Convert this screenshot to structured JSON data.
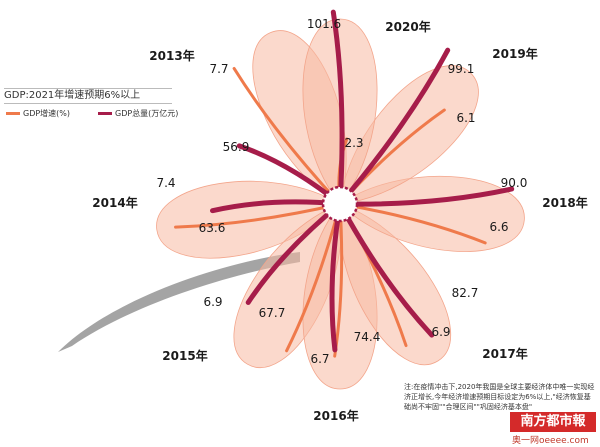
{
  "chart_data": {
    "type": "radial-bar",
    "title": "GDP:2021年增速预期6%以上",
    "legend": [
      {
        "name": "GDP增速(%)",
        "color": "#ef7a4b"
      },
      {
        "name": "GDP总量(万亿元)",
        "color": "#a61d4a"
      }
    ],
    "categories": [
      "2013年",
      "2014年",
      "2015年",
      "2016年",
      "2017年",
      "2018年",
      "2019年",
      "2020年"
    ],
    "series": [
      {
        "name": "GDP增速(%)",
        "values": [
          7.7,
          7.4,
          6.9,
          6.7,
          6.9,
          6.6,
          6.1,
          2.3
        ]
      },
      {
        "name": "GDP总量(万亿元)",
        "values": [
          56.9,
          63.6,
          67.7,
          74.4,
          82.7,
          90.0,
          99.1,
          101.6
        ]
      }
    ]
  },
  "value_labels": {
    "growth": [
      "7.7",
      "7.4",
      "6.9",
      "6.7",
      "6.9",
      "6.6",
      "6.1",
      "2.3"
    ],
    "total": [
      "56.9",
      "63.6",
      "67.7",
      "74.4",
      "82.7",
      "90.0",
      "99.1",
      "101.6"
    ]
  },
  "note": "注:在疫情冲击下,2020年我国是全球主要经济体中唯一实现经济正增长,今年经济增速预期目标设定为6%以上,\"经济恢复基础尚不牢固\"\"合理区间\"\"巩固经济基本盘\"",
  "logo_text": "南方都市報",
  "site_text": "奥一网oeeee.com",
  "colors": {
    "growth": "#ef7a4b",
    "total": "#a61d4a",
    "petal": "#f7b9a3",
    "center_ring": "#a61d4a",
    "swoosh": "#9a9a9a"
  }
}
